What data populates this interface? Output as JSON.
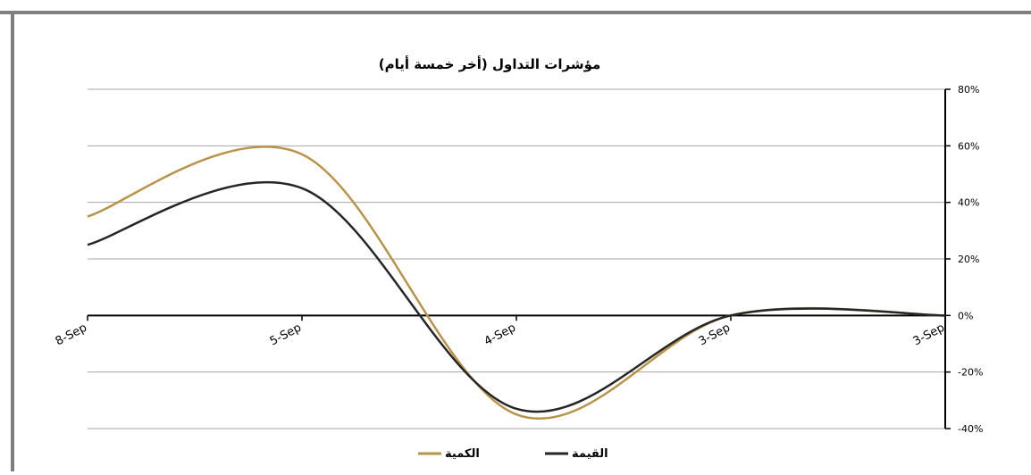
{
  "chart_data": {
    "type": "line",
    "title": "مؤشرات التداول (أخر خمسة أيام)",
    "categories": [
      "8-Sep",
      "5-Sep",
      "4-Sep",
      "3-Sep",
      "3-Sep"
    ],
    "ylim": [
      -40,
      80
    ],
    "yticks": [
      80,
      60,
      40,
      20,
      0,
      -20,
      -40
    ],
    "y_tick_labels": [
      "80%",
      "60%",
      "40%",
      "20%",
      "0%",
      "-20%",
      "-40%"
    ],
    "y_axis_side": "right",
    "x_axis_reversed": true,
    "grid": true,
    "legend": "bottom",
    "series": [
      {
        "name": "الكمية",
        "color": "#B8944B",
        "values": [
          35,
          57,
          -35,
          0,
          0
        ]
      },
      {
        "name": "القيمة",
        "color": "#262626",
        "values": [
          25,
          45,
          -33,
          0,
          0
        ]
      }
    ]
  }
}
